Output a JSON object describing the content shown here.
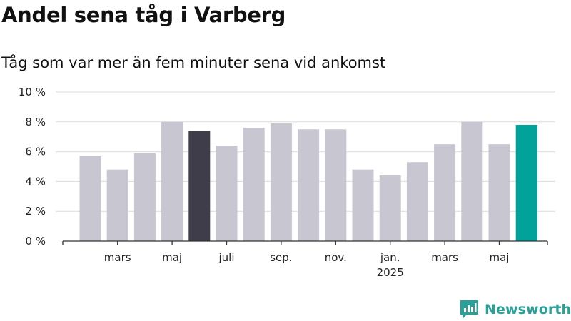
{
  "header": {
    "title": "Andel sena tåg i Varberg",
    "subtitle": "Tåg som var mer än fem minuter sena vid ankomst"
  },
  "brand": {
    "name": "Newsworthy",
    "color": "#2aa198"
  },
  "colors": {
    "default_bar": "#c8c7d1",
    "highlight_previous": "#3f3d4a",
    "highlight_latest": "#00a29a",
    "grid": "#dcdcdc",
    "axis": "#333333"
  },
  "chart_data": {
    "type": "bar",
    "title": "Andel sena tåg i Varberg",
    "subtitle": "Tåg som var mer än fem minuter sena vid ankomst",
    "xlabel": "",
    "ylabel": "",
    "y_unit": "%",
    "ylim": [
      0,
      10
    ],
    "y_ticks": [
      0,
      2,
      4,
      6,
      8,
      10
    ],
    "y_tick_labels": [
      "0 %",
      "2 %",
      "4 %",
      "6 %",
      "8 %",
      "10 %"
    ],
    "grid": true,
    "legend": "none",
    "categories": [
      "2024-02",
      "2024-03",
      "2024-04",
      "2024-05",
      "2024-06",
      "2024-07",
      "2024-08",
      "2024-09",
      "2024-10",
      "2024-11",
      "2024-12",
      "2025-01",
      "2025-02",
      "2025-03",
      "2025-04",
      "2025-05",
      "2025-06"
    ],
    "values": [
      5.7,
      4.8,
      5.9,
      8.0,
      7.4,
      6.4,
      7.6,
      7.9,
      7.5,
      7.5,
      4.8,
      4.4,
      5.3,
      6.5,
      8.0,
      6.5,
      7.8
    ],
    "highlight": [
      "default",
      "default",
      "default",
      "default",
      "previous",
      "default",
      "default",
      "default",
      "default",
      "default",
      "default",
      "default",
      "default",
      "default",
      "default",
      "default",
      "latest"
    ],
    "x_tick_labels": [
      {
        "category": "2024-03",
        "label": "mars"
      },
      {
        "category": "2024-05",
        "label": "maj"
      },
      {
        "category": "2024-07",
        "label": "juli"
      },
      {
        "category": "2024-09",
        "label": "sep."
      },
      {
        "category": "2024-11",
        "label": "nov."
      },
      {
        "category": "2025-01",
        "label": "jan.",
        "sublabel": "2025"
      },
      {
        "category": "2025-03",
        "label": "mars"
      },
      {
        "category": "2025-05",
        "label": "maj"
      }
    ]
  }
}
